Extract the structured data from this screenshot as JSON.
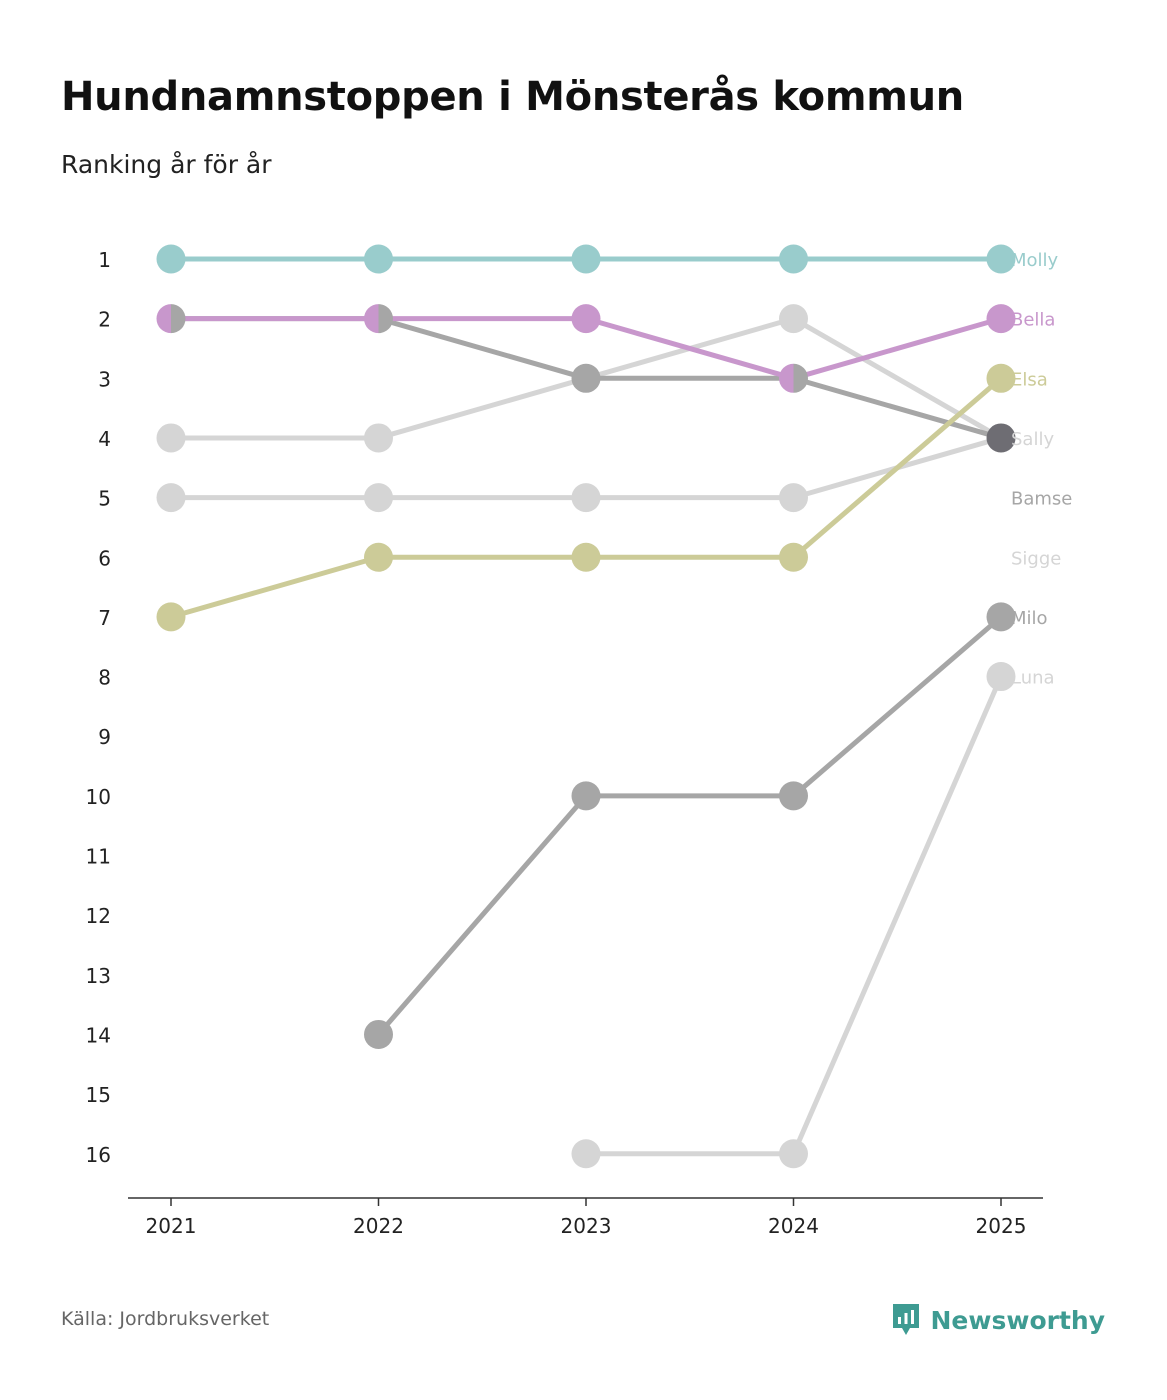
{
  "title": "Hundnamnstoppen i Mönsterås kommun",
  "subtitle": "Ranking år för år",
  "source": "Källa: Jordbruksverket",
  "brand": {
    "name": "Newsworthy",
    "color": "#3e9b92",
    "icon": "newsworthy-logo-icon"
  },
  "chart_data": {
    "type": "line",
    "chart_kind": "bump",
    "title": "Hundnamnstoppen i Mönsterås kommun",
    "subtitle": "Ranking år för år",
    "xlabel": "",
    "ylabel": "",
    "y_reversed": true,
    "ylim": [
      1,
      16
    ],
    "categories": [
      "2021",
      "2022",
      "2023",
      "2024",
      "2025"
    ],
    "y_ticks": [
      "1",
      "2",
      "3",
      "4",
      "5",
      "6",
      "7",
      "8",
      "9",
      "10",
      "11",
      "12",
      "13",
      "14",
      "15",
      "16"
    ],
    "series": [
      {
        "name": "Luna",
        "color": "#d5d5d5",
        "values": [
          null,
          null,
          16,
          16,
          8
        ]
      },
      {
        "name": "Sigge",
        "color": "#d5d5d5",
        "values": [
          4,
          4,
          3,
          2,
          4
        ]
      },
      {
        "name": "Bamse",
        "color": "#d5d5d5",
        "values": [
          5,
          5,
          5,
          5,
          4
        ]
      },
      {
        "name": "Milo",
        "color": "#a6a6a6",
        "values": [
          null,
          14,
          10,
          10,
          7
        ]
      },
      {
        "name": "Sally",
        "color": "#a6a6a6",
        "values": [
          2,
          2,
          3,
          3,
          4
        ]
      },
      {
        "name": "Elsa",
        "color": "#cccb98",
        "values": [
          7,
          6,
          6,
          6,
          3
        ]
      },
      {
        "name": "Bella",
        "color": "#c897cc",
        "values": [
          2,
          2,
          2,
          3,
          2
        ]
      },
      {
        "name": "Molly",
        "color": "#99cccc",
        "values": [
          1,
          1,
          1,
          1,
          1
        ]
      }
    ],
    "end_labels": [
      {
        "name": "Molly",
        "rank": 1,
        "color": "#99cccc"
      },
      {
        "name": "Bella",
        "rank": 2,
        "color": "#c897cc"
      },
      {
        "name": "Elsa",
        "rank": 3,
        "color": "#cccb98"
      },
      {
        "name": "Sally",
        "rank": 4,
        "color": "#d5d5d5"
      },
      {
        "name": "Bamse",
        "rank": 5,
        "color": "#a6a6a6"
      },
      {
        "name": "Sigge",
        "rank": 6,
        "color": "#d5d5d5"
      },
      {
        "name": "Milo",
        "rank": 7,
        "color": "#a6a6a6"
      },
      {
        "name": "Luna",
        "rank": 8,
        "color": "#d5d5d5"
      }
    ],
    "overlap_color": "#6e6d73",
    "legend": "none",
    "grid": false
  }
}
